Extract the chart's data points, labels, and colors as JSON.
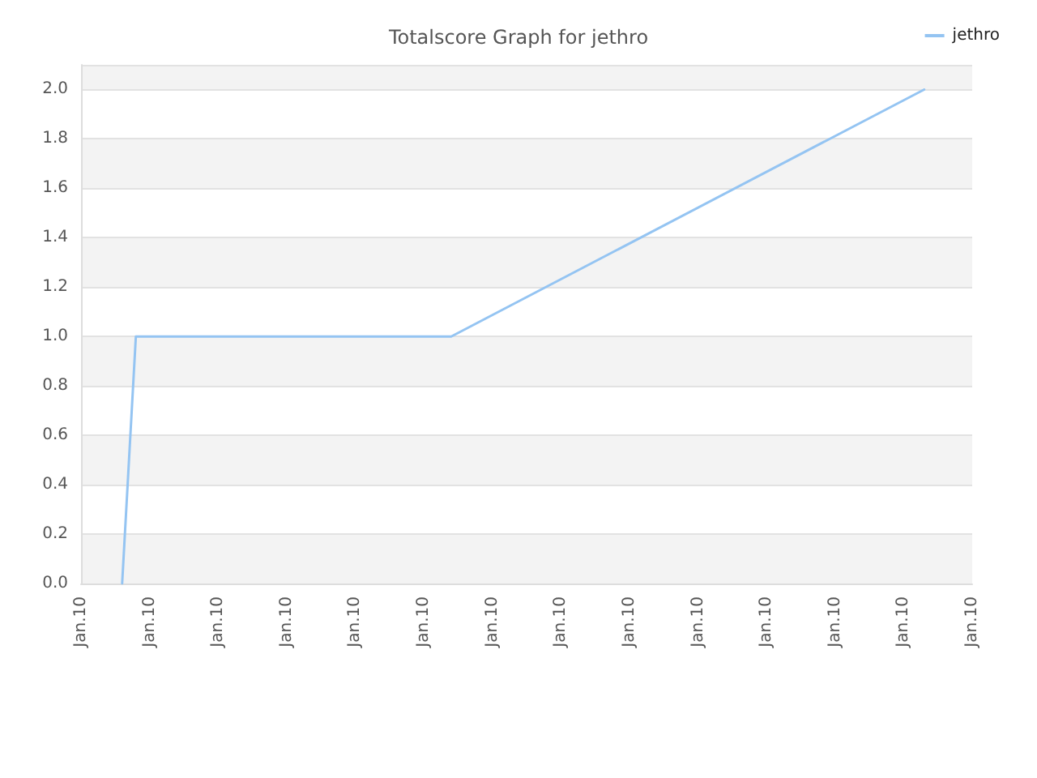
{
  "chart_data": {
    "type": "line",
    "title": "Totalscore Graph for jethro",
    "categories": [
      "Jan.10",
      null,
      null,
      null,
      null,
      null,
      null,
      null,
      null,
      null,
      "Jan.10",
      null,
      null,
      null,
      null,
      null,
      null,
      null,
      null,
      null,
      "Jan.10",
      null,
      null,
      null,
      null,
      null,
      null,
      null,
      null,
      null,
      "Jan.10",
      null,
      null,
      null,
      null,
      null,
      null,
      null,
      null,
      null,
      "Jan.10",
      null,
      null,
      null,
      null,
      null,
      null,
      null,
      null,
      null,
      "Jan.10",
      null,
      null,
      null,
      null,
      null,
      null,
      null,
      null,
      null,
      "Jan.10",
      null,
      null,
      null,
      null,
      null,
      null,
      null,
      null,
      null,
      "Jan.10",
      null,
      null,
      null,
      null,
      null,
      null,
      null,
      null,
      null,
      "Jan.10",
      null,
      null,
      null,
      null,
      null,
      null,
      null,
      null,
      null,
      "Jan.10",
      null,
      null,
      null,
      null,
      null,
      null,
      null,
      null,
      null,
      "Jan.10",
      null,
      null,
      null,
      null,
      null,
      null,
      null,
      null,
      null,
      "Jan.10",
      null,
      null,
      null,
      null,
      null,
      null,
      null,
      null,
      null,
      "Jan.10",
      null,
      null,
      null,
      null,
      null,
      null,
      null,
      null,
      null,
      "Jan.10"
    ],
    "series": [
      {
        "name": "jethro",
        "color": "#94c4f2",
        "values": [
          null,
          null,
          null,
          null,
          null,
          null,
          0,
          0.5,
          1.0,
          null,
          null,
          null,
          null,
          null,
          null,
          null,
          null,
          null,
          null,
          null,
          null,
          null,
          null,
          null,
          null,
          null,
          null,
          null,
          null,
          null,
          null,
          null,
          null,
          null,
          null,
          null,
          null,
          null,
          null,
          null,
          null,
          null,
          null,
          null,
          null,
          null,
          null,
          null,
          null,
          null,
          null,
          null,
          null,
          null,
          1.0,
          null,
          null,
          null,
          null,
          null,
          null,
          null,
          null,
          null,
          null,
          null,
          null,
          null,
          null,
          null,
          null,
          null,
          null,
          null,
          null,
          null,
          null,
          null,
          null,
          null,
          null,
          null,
          null,
          null,
          null,
          null,
          null,
          null,
          null,
          null,
          null,
          null,
          null,
          null,
          null,
          null,
          null,
          null,
          null,
          null,
          null,
          null,
          null,
          null,
          null,
          null,
          null,
          null,
          null,
          null,
          null,
          null,
          null,
          null,
          null,
          null,
          null,
          null,
          null,
          null,
          null,
          null,
          null,
          2.0,
          null,
          null,
          null,
          null,
          null,
          null,
          null
        ]
      }
    ],
    "ylim": [
      0,
      2.1
    ],
    "yticks": [
      {
        "value": 0,
        "label": "0.0"
      },
      {
        "value": 0.2,
        "label": "0.2"
      },
      {
        "value": 0.4,
        "label": "0.4"
      },
      {
        "value": 0.6,
        "label": "0.6"
      },
      {
        "value": 0.8,
        "label": "0.8"
      },
      {
        "value": 1.0,
        "label": "1.0"
      },
      {
        "value": 1.2,
        "label": "1.2"
      },
      {
        "value": 1.4,
        "label": "1.4"
      },
      {
        "value": 1.6,
        "label": "1.6"
      },
      {
        "value": 1.8,
        "label": "1.8"
      },
      {
        "value": 2.0,
        "label": "2.0"
      }
    ],
    "grid": "y",
    "legend": "top right",
    "marker": "none",
    "line_style": "solid"
  }
}
